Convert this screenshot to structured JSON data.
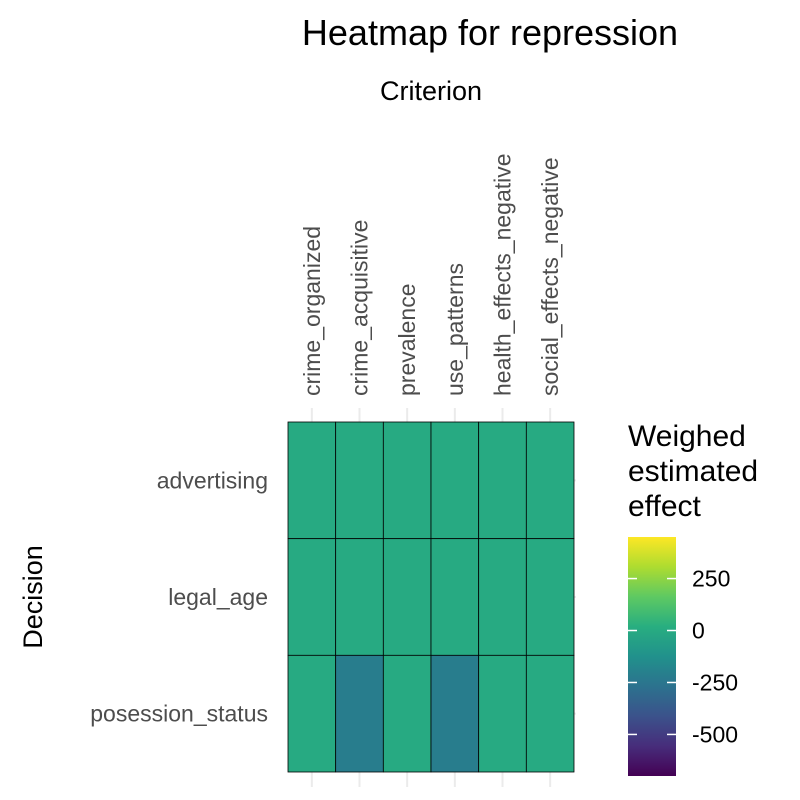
{
  "chart_data": {
    "type": "heatmap",
    "title": "Heatmap for repression",
    "x_title": "Criterion",
    "y_title": "Decision",
    "columns": [
      "crime_organized",
      "crime_acquisitive",
      "prevalence",
      "use_patterns",
      "health_effects_negative",
      "social_effects_negative"
    ],
    "rows": [
      "advertising",
      "legal_age",
      "posession_status"
    ],
    "values": [
      [
        0,
        0,
        0,
        0,
        0,
        0
      ],
      [
        0,
        0,
        0,
        0,
        0,
        0
      ],
      [
        0,
        -220,
        0,
        -220,
        0,
        0
      ]
    ],
    "legend": {
      "title_lines": [
        "Weighed",
        "estimated",
        "effect"
      ],
      "ticks": [
        250,
        0,
        -250,
        -500
      ],
      "tick_labels": [
        "250",
        "0",
        "-250",
        "-500"
      ],
      "range": [
        -700,
        450
      ],
      "colormap": "viridis"
    },
    "grid": true,
    "legend_position": "right"
  }
}
